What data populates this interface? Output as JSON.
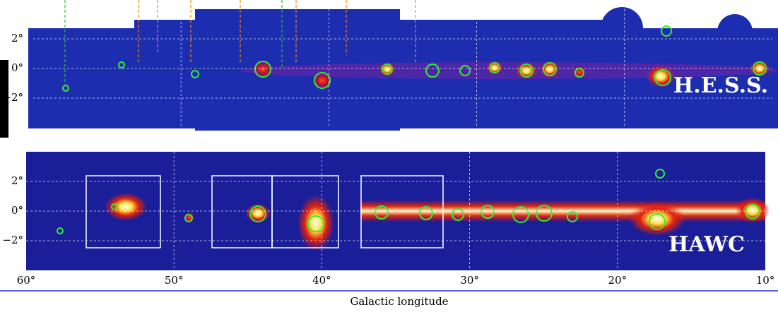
{
  "chart_data": [
    {
      "type": "skymap",
      "label": "H.E.S.S.",
      "xlim": [
        60,
        10
      ],
      "ylim": [
        -4,
        4
      ],
      "yticks": [
        {
          "value": 2,
          "label": "2°"
        },
        {
          "value": 0,
          "label": "0°"
        },
        {
          "value": -2,
          "label": "−2°"
        }
      ],
      "grid": true
    },
    {
      "type": "skymap",
      "label": "HAWC",
      "xlim": [
        60,
        10
      ],
      "ylim": [
        -4,
        4
      ],
      "xticks": [
        {
          "value": 60,
          "label": "60°"
        },
        {
          "value": 50,
          "label": "50°"
        },
        {
          "value": 40,
          "label": "40°"
        },
        {
          "value": 30,
          "label": "30°"
        },
        {
          "value": 20,
          "label": "20°"
        },
        {
          "value": 10,
          "label": "10°"
        }
      ],
      "yticks": [
        {
          "value": 2,
          "label": "2°"
        },
        {
          "value": 0,
          "label": "0°"
        },
        {
          "value": -2,
          "label": "−2°"
        }
      ],
      "xlabel": "Galactic longitude",
      "grid": true
    }
  ]
}
